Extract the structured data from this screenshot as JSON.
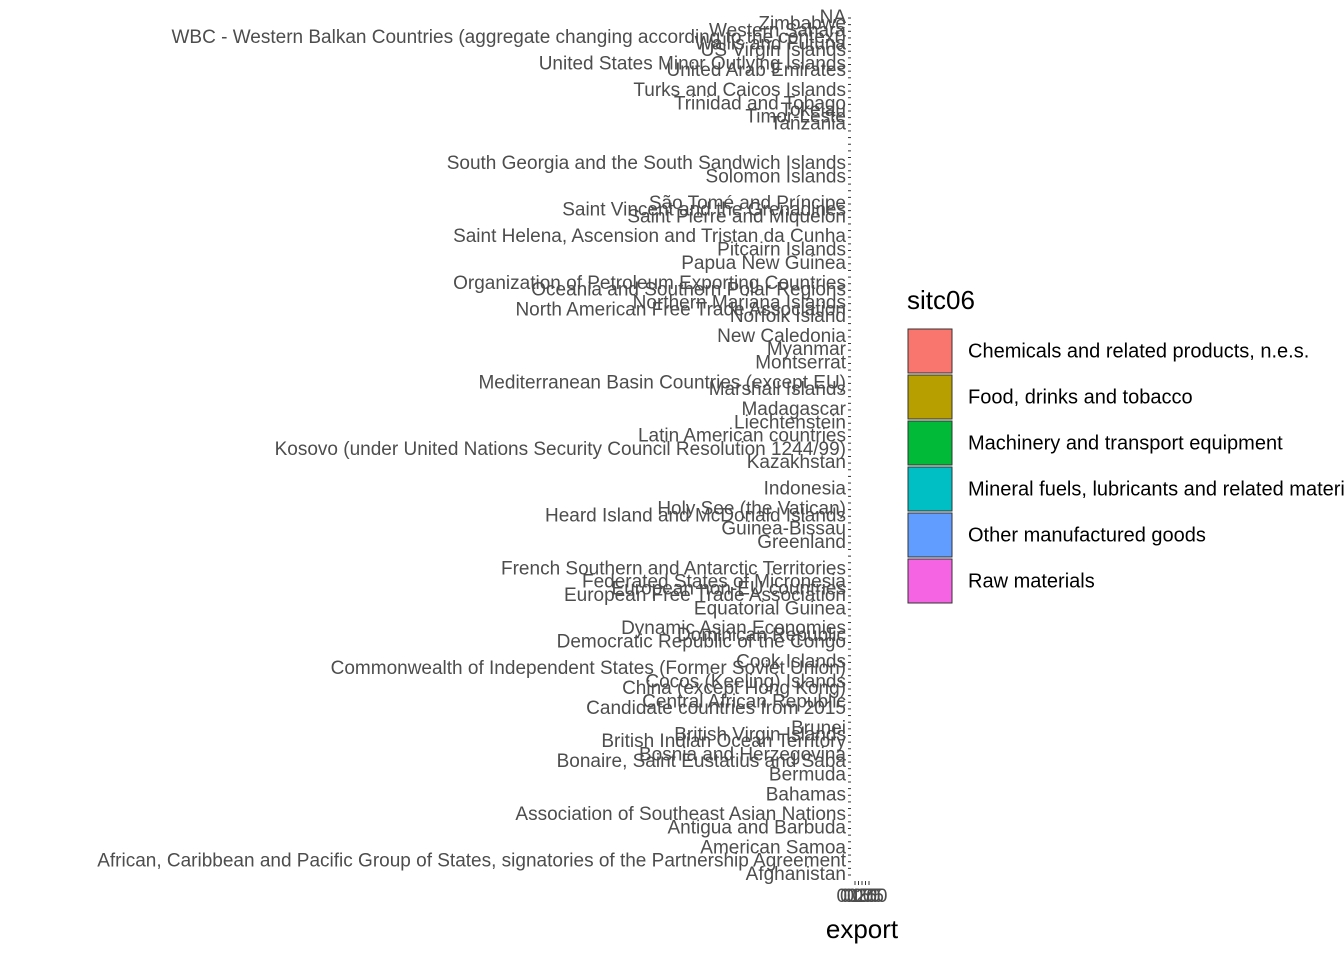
{
  "chart_data": {
    "type": "bar",
    "orientation": "horizontal",
    "x_label": "export",
    "xlim": [
      0,
      1
    ],
    "xticks": [
      {
        "value": 0,
        "label": "0.00"
      },
      {
        "value": 0.25,
        "label": "0.25"
      },
      {
        "value": 0.5,
        "label": "0.50"
      },
      {
        "value": 0.75,
        "label": "0.75"
      },
      {
        "value": 1,
        "label": "1.00"
      }
    ],
    "legend_title": "sitc06",
    "series": [
      {
        "name": "Chemicals and related products, n.e.s.",
        "color": "#F8766D"
      },
      {
        "name": "Food, drinks and tobacco",
        "color": "#B79F00"
      },
      {
        "name": "Machinery and transport equipment",
        "color": "#00BA38"
      },
      {
        "name": "Mineral fuels, lubricants and related materials",
        "color": "#00BFC4"
      },
      {
        "name": "Other manufactured goods",
        "color": "#619CFF"
      },
      {
        "name": "Raw materials",
        "color": "#F564E3"
      }
    ],
    "categories": [
      "Afghanistan",
      null,
      "African, Caribbean and Pacific Group of States, signatories of the Partnership Agreement",
      null,
      "American Samoa",
      null,
      null,
      "Antigua and Barbuda",
      null,
      "Association of Southeast Asian Nations",
      null,
      null,
      "Bahamas",
      null,
      null,
      "Bermuda",
      null,
      "Bonaire, Saint Eustatius and Saba",
      "Bosnia and Herzegovina",
      null,
      "British Indian Ocean Territory",
      "British Virgin Islands",
      "Brunei",
      null,
      null,
      "Candidate countries from 2015",
      "Central African Republic",
      null,
      "China (except Hong Kong)",
      "Cocos (Keeling) Islands",
      null,
      "Commonwealth of Independent States (Former Soviet Union)",
      "Cook Islands",
      null,
      null,
      "Democratic Republic of the Congo",
      "Dominican Republic",
      "Dynamic Asian Economies",
      null,
      null,
      "Equatorial Guinea",
      null,
      "European Free Trade Association",
      "European non-EU countries",
      "Federated States of Micronesia",
      null,
      "French Southern and Antarctic Territories",
      null,
      null,
      null,
      "Greenland",
      null,
      "Guinea-Bissau",
      null,
      "Heard Island and McDonald Islands",
      "Holy See (the Vatican)",
      null,
      null,
      "Indonesia",
      null,
      null,
      null,
      "Kazakhstan",
      null,
      "Kosovo (under United Nations Security Council Resolution 1244/99)",
      null,
      "Latin American countries",
      null,
      "Liechtenstein",
      null,
      "Madagascar",
      null,
      null,
      "Marshall Islands",
      "Mediterranean Basin Countries (except EU)",
      null,
      null,
      "Montserrat",
      null,
      "Myanmar",
      null,
      "New Caledonia",
      null,
      null,
      "Norfolk Island",
      "North American Free Trade Association",
      "Northern Mariana Islands",
      null,
      "Oceania and Southern Polar Regions",
      "Organization of Petroleum Exporting Countries",
      null,
      null,
      "Papua New Guinea",
      null,
      "Pitcairn Islands",
      null,
      "Saint Helena, Ascension and Tristan da Cunha",
      null,
      null,
      "Saint Pierre and Miquelon",
      "Saint Vincent and the Grenadines",
      "São Tomé and Príncipe",
      null,
      null,
      null,
      "Solomon Islands",
      null,
      "South Georgia and the South Sandwich Islands",
      null,
      null,
      null,
      null,
      null,
      "Tanzania",
      "Timor-Leste",
      "Tokelau",
      "Trinidad and Tobago",
      null,
      "Turks and Caicos Islands",
      null,
      null,
      "United Arab Emirates",
      "United States Minor Outlying Islands",
      null,
      "US Virgin Islands",
      "Wallis and Futuna",
      "WBC - Western Balkan Countries (aggregate changing according to the context)",
      "Western Sahara",
      "Zimbabwe",
      "NA"
    ]
  }
}
